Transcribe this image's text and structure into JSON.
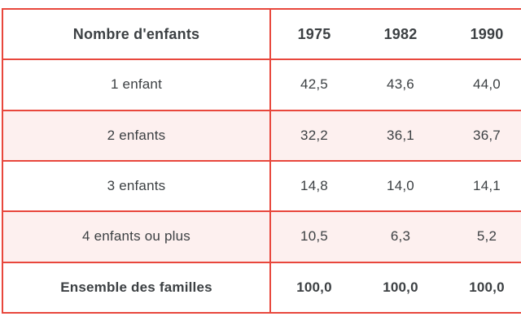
{
  "colors": {
    "border_red": "#e8473c",
    "stripe_pink": "#fdf0ef",
    "text_dark": "#3c4043",
    "background": "#ffffff"
  },
  "table": {
    "columns": [
      "Nombre d'enfants",
      "1975",
      "1982",
      "1990"
    ],
    "rows": [
      {
        "label": "1 enfant",
        "values": [
          "42,5",
          "43,6",
          "44,0"
        ]
      },
      {
        "label": "2 enfants",
        "values": [
          "32,2",
          "36,1",
          "36,7"
        ]
      },
      {
        "label": "3 enfants",
        "values": [
          "14,8",
          "14,0",
          "14,1"
        ]
      },
      {
        "label": "4 enfants ou plus",
        "values": [
          "10,5",
          "6,3",
          "5,2"
        ]
      },
      {
        "label": "Ensemble des familles",
        "values": [
          "100,0",
          "100,0",
          "100,0"
        ]
      }
    ]
  },
  "chart_data": {
    "type": "table",
    "title": "Nombre d'enfants",
    "categories": [
      "1 enfant",
      "2 enfants",
      "3 enfants",
      "4 enfants ou plus",
      "Ensemble des familles"
    ],
    "series": [
      {
        "name": "1975",
        "values": [
          42.5,
          32.2,
          14.8,
          10.5,
          100.0
        ]
      },
      {
        "name": "1982",
        "values": [
          43.6,
          36.1,
          14.0,
          6.3,
          100.0
        ]
      },
      {
        "name": "1990",
        "values": [
          44.0,
          36.7,
          14.1,
          5.2,
          100.0
        ]
      }
    ]
  }
}
